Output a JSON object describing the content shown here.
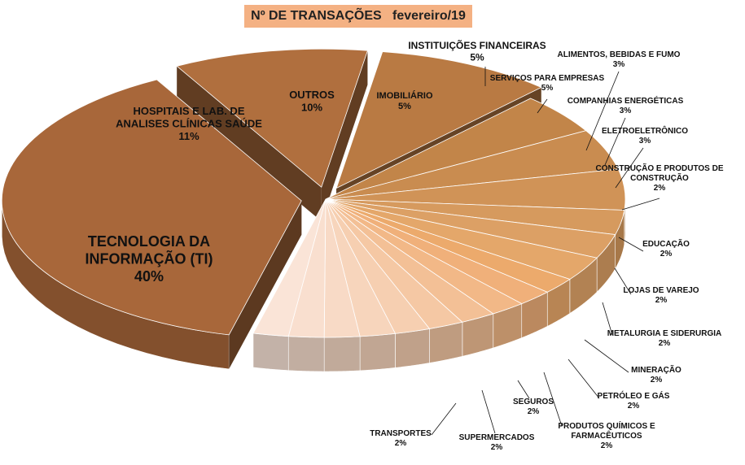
{
  "chart_data": {
    "type": "pie",
    "title": "Nº DE TRANSAÇÕES",
    "subtitle": "fevereiro/19",
    "slices": [
      {
        "label": "TECNOLOGIA DA INFORMAÇÃO (TI)",
        "value": 40,
        "pct": "40%",
        "color": "#a8673a",
        "exploded": true
      },
      {
        "label": "HOSPITAIS E LAB. DE ANALISES CLÍNICAS SAÚDE",
        "value": 11,
        "pct": "11%",
        "color": "#b06f3e",
        "exploded": true
      },
      {
        "label": "OUTROS",
        "value": 10,
        "pct": "10%",
        "color": "#b97a43",
        "exploded": true
      },
      {
        "label": "IMOBILIÁRIO",
        "value": 5,
        "pct": "5%",
        "color": "#c28549"
      },
      {
        "label": "INSTITUIÇÕES FINANCEIRAS",
        "value": 5,
        "pct": "5%",
        "color": "#c98c50"
      },
      {
        "label": "SERVIÇOS PARA EMPRESAS",
        "value": 5,
        "pct": "5%",
        "color": "#d09357"
      },
      {
        "label": "ALIMENTOS, BEBIDAS E FUMO",
        "value": 3,
        "pct": "3%",
        "color": "#d69a5e"
      },
      {
        "label": "COMPANHIAS ENERGÉTICAS",
        "value": 3,
        "pct": "3%",
        "color": "#dca065"
      },
      {
        "label": "ELETROELETRÔNICO",
        "value": 3,
        "pct": "3%",
        "color": "#e4a76a"
      },
      {
        "label": "CONSTRUÇÃO E PRODUTOS DE CONSTRUÇÃO",
        "value": 2,
        "pct": "2%",
        "color": "#ecaa6c"
      },
      {
        "label": "EDUCAÇÃO",
        "value": 2,
        "pct": "2%",
        "color": "#f0b07a"
      },
      {
        "label": "LOJAS DE VAREJO",
        "value": 2,
        "pct": "2%",
        "color": "#f2b887"
      },
      {
        "label": "METALURGIA E SIDERURGIA",
        "value": 2,
        "pct": "2%",
        "color": "#f3c096"
      },
      {
        "label": "MINERAÇÃO",
        "value": 2,
        "pct": "2%",
        "color": "#f5c8a4"
      },
      {
        "label": "PETRÓLEO E GÁS",
        "value": 2,
        "pct": "2%",
        "color": "#f6cfb1"
      },
      {
        "label": "PRODUTOS QUÍMICOS E FARMACÊUTICOS",
        "value": 2,
        "pct": "2%",
        "color": "#f7d5bc"
      },
      {
        "label": "SEGUROS",
        "value": 2,
        "pct": "2%",
        "color": "#f8dac6"
      },
      {
        "label": "SUPERMERCADOS",
        "value": 2,
        "pct": "2%",
        "color": "#f9dfcf"
      },
      {
        "label": "TRANSPORTES",
        "value": 2,
        "pct": "2%",
        "color": "#fae4d7"
      }
    ],
    "legend": "none"
  }
}
